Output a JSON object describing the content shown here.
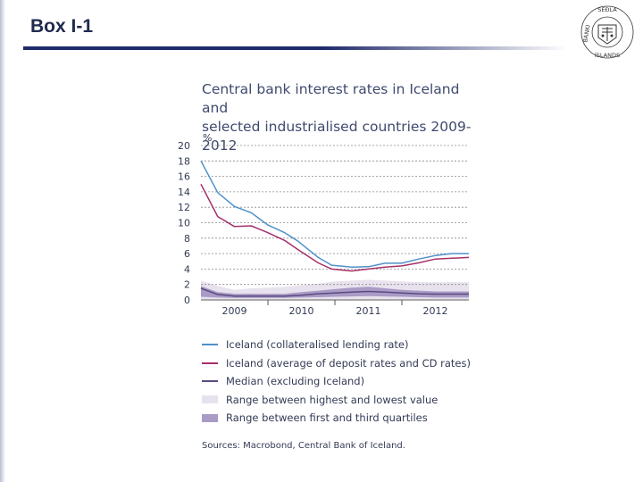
{
  "slide": {
    "title": "Box I-1",
    "accent_color": "#1f2a6b",
    "logo_icon": "university-seal-icon",
    "logo_text": "SEÐLABANKI ÍSLANDS"
  },
  "chart_data": {
    "type": "line",
    "title_lines": [
      "Central bank interest rates in Iceland and",
      "selected industrialised countries 2009-2012"
    ],
    "ylabel": "%",
    "ylim": [
      0,
      20
    ],
    "yticks": [
      0,
      2,
      4,
      6,
      8,
      10,
      12,
      14,
      16,
      18,
      20
    ],
    "xlim": [
      2009.0,
      2013.0
    ],
    "xticks": [
      {
        "label": "2009",
        "pos": 2009.5
      },
      {
        "label": "2010",
        "pos": 2010.5
      },
      {
        "label": "2011",
        "pos": 2011.5
      },
      {
        "label": "2012",
        "pos": 2012.5
      }
    ],
    "year_boundaries": [
      2010.0,
      2011.0,
      2012.0
    ],
    "grid": "horizontal dashed",
    "series": [
      {
        "name": "Iceland (collateralised lending rate)",
        "color": "#4f90c8",
        "kind": "line",
        "points": [
          [
            2009.0,
            18.0
          ],
          [
            2009.25,
            13.9
          ],
          [
            2009.5,
            12.1
          ],
          [
            2009.75,
            11.3
          ],
          [
            2010.0,
            9.7
          ],
          [
            2010.25,
            8.7
          ],
          [
            2010.45,
            7.6
          ],
          [
            2010.75,
            5.5
          ],
          [
            2010.95,
            4.5
          ],
          [
            2011.25,
            4.25
          ],
          [
            2011.5,
            4.3
          ],
          [
            2011.75,
            4.75
          ],
          [
            2012.0,
            4.75
          ],
          [
            2012.25,
            5.3
          ],
          [
            2012.5,
            5.75
          ],
          [
            2012.75,
            6.0
          ],
          [
            2013.0,
            6.0
          ]
        ]
      },
      {
        "name": "Iceland (average of deposit rates and CD rates)",
        "color": "#a6306a",
        "kind": "line",
        "points": [
          [
            2009.0,
            15.0
          ],
          [
            2009.25,
            10.8
          ],
          [
            2009.5,
            9.5
          ],
          [
            2009.75,
            9.6
          ],
          [
            2010.0,
            8.7
          ],
          [
            2010.25,
            7.7
          ],
          [
            2010.45,
            6.5
          ],
          [
            2010.75,
            4.8
          ],
          [
            2010.95,
            4.0
          ],
          [
            2011.25,
            3.75
          ],
          [
            2011.5,
            4.0
          ],
          [
            2011.75,
            4.25
          ],
          [
            2012.0,
            4.4
          ],
          [
            2012.25,
            4.8
          ],
          [
            2012.5,
            5.3
          ],
          [
            2012.75,
            5.4
          ],
          [
            2013.0,
            5.5
          ]
        ]
      },
      {
        "name": "Median (excluding Iceland)",
        "color": "#5a4a80",
        "kind": "line",
        "points": [
          [
            2009.0,
            1.5
          ],
          [
            2009.25,
            0.7
          ],
          [
            2009.5,
            0.5
          ],
          [
            2009.75,
            0.5
          ],
          [
            2010.0,
            0.5
          ],
          [
            2010.25,
            0.5
          ],
          [
            2010.5,
            0.6
          ],
          [
            2010.75,
            0.8
          ],
          [
            2011.0,
            0.9
          ],
          [
            2011.25,
            1.0
          ],
          [
            2011.5,
            1.1
          ],
          [
            2011.75,
            1.0
          ],
          [
            2012.0,
            0.9
          ],
          [
            2012.25,
            0.8
          ],
          [
            2012.5,
            0.75
          ],
          [
            2012.75,
            0.75
          ],
          [
            2013.0,
            0.75
          ]
        ]
      },
      {
        "name": "Range between highest and lowest value",
        "color": "#e8e2ee",
        "kind": "band",
        "x": [
          2009.0,
          2009.25,
          2009.5,
          2009.75,
          2010.0,
          2010.25,
          2010.5,
          2010.75,
          2011.0,
          2011.25,
          2011.5,
          2011.75,
          2012.0,
          2012.25,
          2012.5,
          2012.75,
          2013.0
        ],
        "low": [
          0.1,
          0.1,
          0.1,
          0.1,
          0.1,
          0.1,
          0.1,
          0.1,
          0.1,
          0.1,
          0.1,
          0.1,
          0.1,
          0.1,
          0.1,
          0.1,
          0.1
        ],
        "high": [
          2.5,
          1.8,
          1.3,
          1.5,
          1.6,
          1.7,
          1.9,
          2.1,
          2.4,
          2.5,
          2.6,
          2.5,
          2.4,
          2.3,
          2.3,
          2.3,
          2.3
        ]
      },
      {
        "name": "Range between first and third quartiles",
        "color": "#a99bc6",
        "kind": "band",
        "x": [
          2009.0,
          2009.25,
          2009.5,
          2009.75,
          2010.0,
          2010.25,
          2010.5,
          2010.75,
          2011.0,
          2011.25,
          2011.5,
          2011.75,
          2012.0,
          2012.25,
          2012.5,
          2012.75,
          2013.0
        ],
        "low": [
          0.4,
          0.3,
          0.25,
          0.25,
          0.25,
          0.25,
          0.3,
          0.35,
          0.4,
          0.45,
          0.5,
          0.45,
          0.4,
          0.35,
          0.3,
          0.3,
          0.3
        ],
        "high": [
          1.8,
          1.0,
          0.8,
          0.8,
          0.8,
          0.8,
          1.0,
          1.2,
          1.4,
          1.6,
          1.7,
          1.5,
          1.3,
          1.2,
          1.1,
          1.1,
          1.1
        ]
      }
    ],
    "legend": [
      {
        "label": "Iceland (collateralised lending rate)",
        "kind": "line",
        "color": "#4f90c8"
      },
      {
        "label": "Iceland (average of deposit rates and CD rates)",
        "kind": "line",
        "color": "#a6306a"
      },
      {
        "label": "Median (excluding Iceland)",
        "kind": "line",
        "color": "#5a4a80"
      },
      {
        "label": "Range between highest and lowest value",
        "kind": "box",
        "color": "#e8e2ee"
      },
      {
        "label": "Range between first and third quartiles",
        "kind": "box",
        "color": "#a99bc6"
      }
    ],
    "legend_position": "bottom",
    "source": "Sources: Macrobond, Central Bank of Iceland."
  }
}
